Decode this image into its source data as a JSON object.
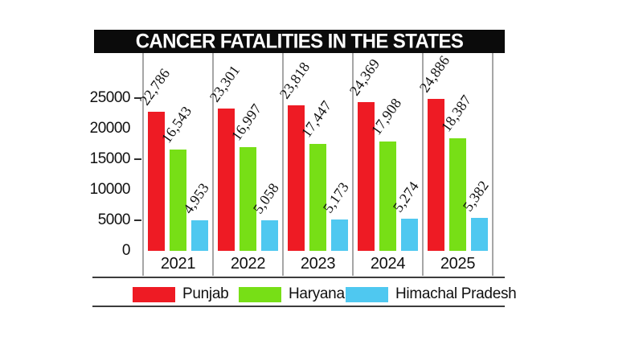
{
  "chart": {
    "title": "CANCER FATALITIES IN THE STATES"
  },
  "chart_data": {
    "type": "bar",
    "title": "CANCER FATALITIES IN THE STATES",
    "categories": [
      "2021",
      "2022",
      "2023",
      "2024",
      "2025"
    ],
    "series": [
      {
        "name": "Punjab",
        "color": "#ee1b24",
        "values": [
          22786,
          23301,
          23818,
          24369,
          24886
        ],
        "labels": [
          "22,786",
          "23,301",
          "23,818",
          "24,369",
          "24,886"
        ]
      },
      {
        "name": "Haryana",
        "color": "#77df16",
        "values": [
          16543,
          16997,
          17447,
          17908,
          18387
        ],
        "labels": [
          "16,543",
          "16,997",
          "17,447",
          "17,908",
          "18,387"
        ]
      },
      {
        "name": "Himachal Pradesh",
        "color": "#4fc8f0",
        "values": [
          4953,
          5058,
          5173,
          5274,
          5382
        ],
        "labels": [
          "4,953",
          "5,058",
          "5,173",
          "5,274",
          "5,382"
        ]
      }
    ],
    "ylim": [
      0,
      25000
    ],
    "y_ticks": [
      {
        "label": "25000",
        "value": 25000,
        "dash": true
      },
      {
        "label": "20000",
        "value": 20000,
        "dash": false
      },
      {
        "label": "15000",
        "value": 15000,
        "dash": true
      },
      {
        "label": "10000",
        "value": 10000,
        "dash": false
      },
      {
        "label": "5000",
        "value": 5000,
        "dash": true
      },
      {
        "label": "0",
        "value": 0,
        "dash": false
      }
    ],
    "grid": "vertical-group-dividers",
    "legend_position": "bottom",
    "value_labels": "rotated-above-bars"
  },
  "legend": {
    "items": [
      {
        "label": "Punjab",
        "color": "#ee1b24"
      },
      {
        "label": "Haryana",
        "color": "#77df16"
      },
      {
        "label": "Himachal Pradesh",
        "color": "#4fc8f0"
      }
    ]
  }
}
